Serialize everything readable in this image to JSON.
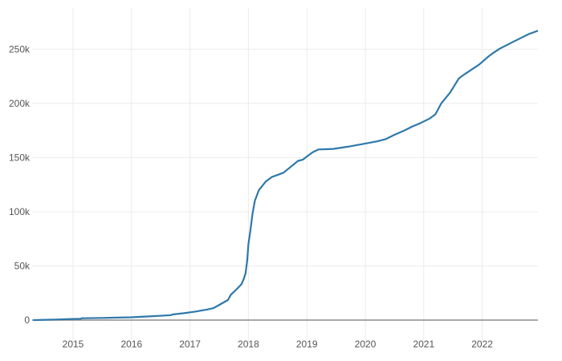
{
  "chart_data": {
    "type": "line",
    "title": "",
    "xlabel": "",
    "ylabel": "",
    "xlim": [
      2014.33,
      2022.98
    ],
    "ylim": [
      -5000,
      282000
    ],
    "grid": true,
    "x_ticks": [
      {
        "value": 2015,
        "label": "2015"
      },
      {
        "value": 2016,
        "label": "2016"
      },
      {
        "value": 2017,
        "label": "2017"
      },
      {
        "value": 2018,
        "label": "2018"
      },
      {
        "value": 2019,
        "label": "2019"
      },
      {
        "value": 2020,
        "label": "2020"
      },
      {
        "value": 2021,
        "label": "2021"
      },
      {
        "value": 2022,
        "label": "2022"
      }
    ],
    "y_ticks": [
      {
        "value": 0,
        "label": "0"
      },
      {
        "value": 50000,
        "label": "50k"
      },
      {
        "value": 100000,
        "label": "100k"
      },
      {
        "value": 150000,
        "label": "150k"
      },
      {
        "value": 200000,
        "label": "200k"
      },
      {
        "value": 250000,
        "label": "250k"
      }
    ],
    "series": [
      {
        "color": "#2e78ab",
        "points": [
          [
            2014.33,
            0
          ],
          [
            2014.7,
            500
          ],
          [
            2015.0,
            1000
          ],
          [
            2015.13,
            1200
          ],
          [
            2015.15,
            1700
          ],
          [
            2015.5,
            2000
          ],
          [
            2016.0,
            2600
          ],
          [
            2016.3,
            3400
          ],
          [
            2016.6,
            4300
          ],
          [
            2016.67,
            4500
          ],
          [
            2016.7,
            5200
          ],
          [
            2016.9,
            6400
          ],
          [
            2017.1,
            7900
          ],
          [
            2017.3,
            9800
          ],
          [
            2017.4,
            11000
          ],
          [
            2017.5,
            14000
          ],
          [
            2017.6,
            17000
          ],
          [
            2017.65,
            18500
          ],
          [
            2017.7,
            23500
          ],
          [
            2017.8,
            28500
          ],
          [
            2017.88,
            33000
          ],
          [
            2017.92,
            38000
          ],
          [
            2017.95,
            43000
          ],
          [
            2017.98,
            55000
          ],
          [
            2018.0,
            70000
          ],
          [
            2018.04,
            85000
          ],
          [
            2018.07,
            98000
          ],
          [
            2018.11,
            110000
          ],
          [
            2018.18,
            120000
          ],
          [
            2018.3,
            128000
          ],
          [
            2018.4,
            132000
          ],
          [
            2018.6,
            136000
          ],
          [
            2018.85,
            147000
          ],
          [
            2018.93,
            148000
          ],
          [
            2019.0,
            151000
          ],
          [
            2019.1,
            155000
          ],
          [
            2019.2,
            157500
          ],
          [
            2019.45,
            158000
          ],
          [
            2019.7,
            160000
          ],
          [
            2020.0,
            163000
          ],
          [
            2020.2,
            165000
          ],
          [
            2020.35,
            167000
          ],
          [
            2020.5,
            171000
          ],
          [
            2020.65,
            174500
          ],
          [
            2020.8,
            178500
          ],
          [
            2020.95,
            182000
          ],
          [
            2021.1,
            186000
          ],
          [
            2021.2,
            190000
          ],
          [
            2021.3,
            200000
          ],
          [
            2021.45,
            210000
          ],
          [
            2021.6,
            223000
          ],
          [
            2021.7,
            227000
          ],
          [
            2021.8,
            230500
          ],
          [
            2021.95,
            236000
          ],
          [
            2022.1,
            243000
          ],
          [
            2022.2,
            247000
          ],
          [
            2022.3,
            250500
          ],
          [
            2022.5,
            256000
          ],
          [
            2022.65,
            260000
          ],
          [
            2022.8,
            264000
          ],
          [
            2022.95,
            267000
          ],
          [
            2023.0,
            268500
          ],
          [
            2023.08,
            270000
          ],
          [
            2023.12,
            271000
          ],
          [
            2023.18,
            275000
          ],
          [
            2023.23,
            277500
          ],
          [
            2023.3,
            280000
          ]
        ]
      }
    ]
  }
}
